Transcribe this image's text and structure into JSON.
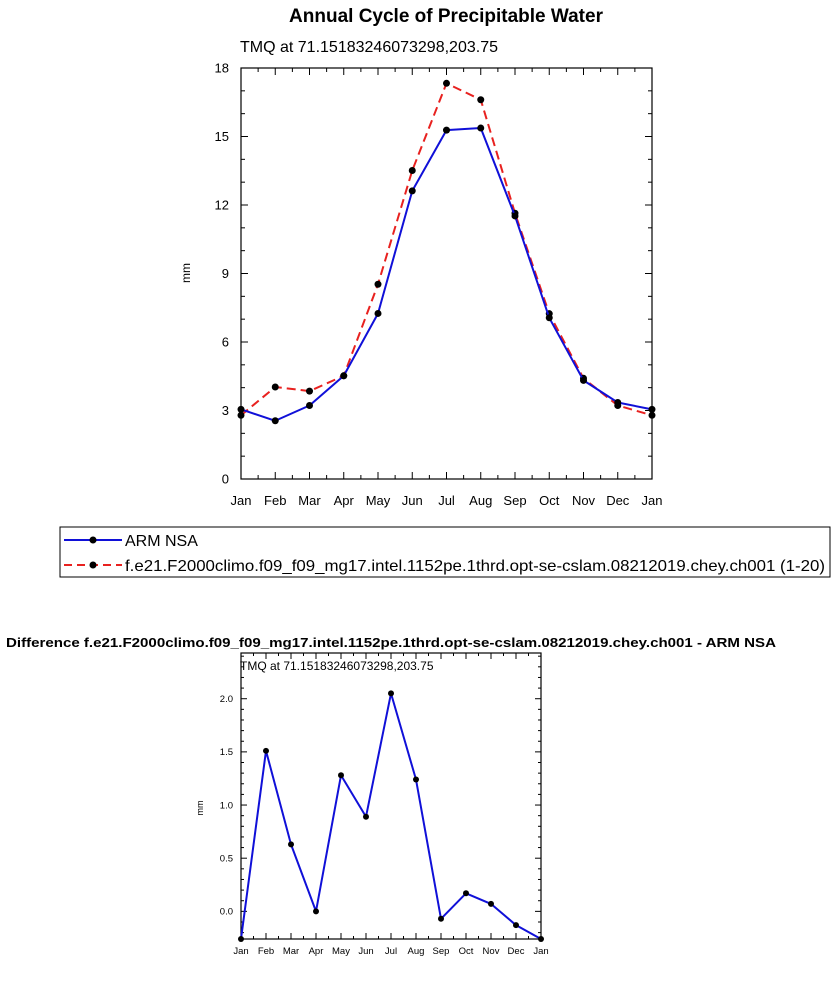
{
  "colors": {
    "model": "#e8211f",
    "obs": "#1010d8",
    "marker": "#000000"
  },
  "chart_data": [
    {
      "type": "line",
      "title": "Annual Cycle of Precipitable Water",
      "subtitle": "TMQ at 71.15183246073298,203.75",
      "xlabel": "",
      "ylabel": "mm",
      "ylim": [
        0,
        18
      ],
      "yticks": [
        0,
        3,
        6,
        9,
        12,
        15,
        18
      ],
      "yticklabels": [
        "0",
        "3",
        "6",
        "9",
        "12",
        "15",
        "18"
      ],
      "categories": [
        "Jan",
        "Feb",
        "Mar",
        "Apr",
        "May",
        "Jun",
        "Jul",
        "Aug",
        "Sep",
        "Oct",
        "Nov",
        "Dec",
        "Jan"
      ],
      "series": [
        {
          "name": "ARM NSA",
          "style": "solid",
          "values": [
            3.05,
            2.55,
            3.22,
            4.52,
            7.25,
            12.62,
            15.28,
            15.37,
            11.52,
            7.06,
            4.32,
            3.35,
            3.05
          ]
        },
        {
          "name": "f.e21.F2000climo.f09_f09_mg17.intel.1152pe.1thrd.opt-se-cslam.08212019.chey.ch001 (1-20)",
          "style": "dashed",
          "values": [
            2.79,
            4.03,
            3.85,
            4.52,
            8.53,
            13.51,
            17.33,
            16.61,
            11.64,
            7.24,
            4.41,
            3.22,
            2.79
          ]
        }
      ]
    },
    {
      "type": "line",
      "title": "Difference f.e21.F2000climo.f09_f09_mg17.intel.1152pe.1thrd.opt-se-cslam.08212019.chey.ch001 - ARM NSA",
      "subtitle": "TMQ at 71.15183246073298,203.75",
      "xlabel": "",
      "ylabel": "mm",
      "ylim": [
        -0.26,
        2.43
      ],
      "yticks": [
        0.0,
        0.5,
        1.0,
        1.5,
        2.0
      ],
      "yticklabels": [
        "0.0",
        "0.5",
        "1.0",
        "1.5",
        "2.0"
      ],
      "categories": [
        "Jan",
        "Feb",
        "Mar",
        "Apr",
        "May",
        "Jun",
        "Jul",
        "Aug",
        "Sep",
        "Oct",
        "Nov",
        "Dec",
        "Jan"
      ],
      "series": [
        {
          "name": "Difference",
          "style": "solid",
          "values": [
            -0.26,
            1.51,
            0.63,
            0.0,
            1.28,
            0.89,
            2.05,
            1.24,
            -0.07,
            0.17,
            0.07,
            -0.13,
            -0.26
          ]
        }
      ]
    }
  ]
}
